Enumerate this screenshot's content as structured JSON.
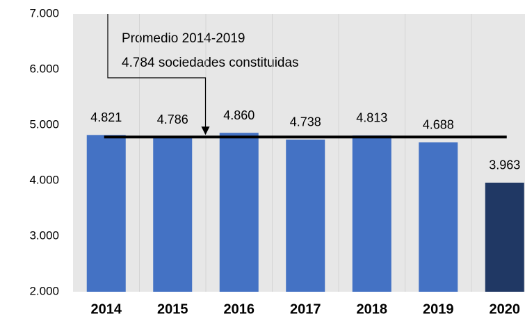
{
  "chart_data": {
    "type": "bar",
    "categories": [
      "2014",
      "2015",
      "2016",
      "2017",
      "2018",
      "2019",
      "2020"
    ],
    "values": [
      4821,
      4786,
      4860,
      4738,
      4813,
      4688,
      3963
    ],
    "value_labels": [
      "4.821",
      "4.786",
      "4.860",
      "4.738",
      "4.813",
      "4.688",
      "3.963"
    ],
    "colors": [
      "#4472c4",
      "#4472c4",
      "#4472c4",
      "#4472c4",
      "#4472c4",
      "#4472c4",
      "#203864"
    ],
    "ylim": [
      2000,
      7000
    ],
    "yticks": [
      {
        "value": 2000,
        "label": "2.000"
      },
      {
        "value": 3000,
        "label": "3.000"
      },
      {
        "value": 4000,
        "label": "4.000"
      },
      {
        "value": 5000,
        "label": "5.000"
      },
      {
        "value": 6000,
        "label": "6.000"
      },
      {
        "value": 7000,
        "label": "7.000"
      }
    ],
    "average": 4784,
    "annotations": [
      "Promedio 2014-2019",
      "4.784 sociedades constituidas"
    ],
    "grid": true
  }
}
